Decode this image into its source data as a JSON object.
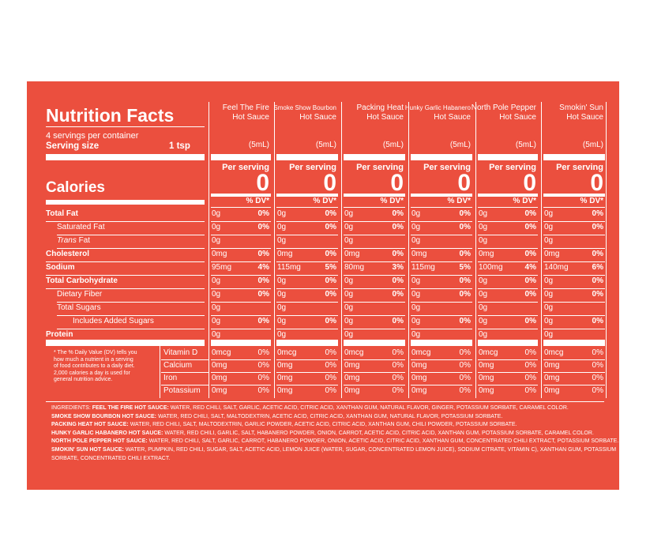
{
  "label": {
    "title": "Nutrition Facts",
    "servings": "4 servings per container",
    "serving_size_label": "Serving size",
    "serving_size_value": "1 tsp",
    "calories_label": "Calories",
    "footnote": [
      "* The % Daily Value (DV) tells you",
      "how much a nutrient in a serving",
      "of food contributes to a daily diet.",
      "2,000 calories a day is used for",
      "general nutrition advice."
    ]
  },
  "nutrients": [
    {
      "label": "Total Fat",
      "bold": true
    },
    {
      "label": "Saturated Fat",
      "indent": 1
    },
    {
      "label": "Trans Fat",
      "indent": 1,
      "italic_prefix": "Trans"
    },
    {
      "label": "Cholesterol",
      "bold": true
    },
    {
      "label": "Sodium",
      "bold": true
    },
    {
      "label": "Total Carbohydrate",
      "bold": true
    },
    {
      "label": "Dietary Fiber",
      "indent": 1
    },
    {
      "label": "Total Sugars",
      "indent": 1
    },
    {
      "label": "Includes Added Sugars",
      "indent": 2
    },
    {
      "label": "Protein",
      "bold": true
    }
  ],
  "minerals": [
    "Vitamin D",
    "Calcium",
    "Iron",
    "Potassium"
  ],
  "common": {
    "serving_ml": "(5mL)",
    "per_serving": "Per serving",
    "calories": "0",
    "dv_header": "% DV*"
  },
  "products": [
    {
      "name1": "Feel The Fire",
      "name2": "Hot Sauce",
      "small": false,
      "amounts": [
        "0g",
        "0g",
        "0g",
        "0mg",
        "95mg",
        "0g",
        "0g",
        "0g",
        "0g",
        "0g"
      ],
      "dv": [
        "0%",
        "0%",
        "",
        "0%",
        "4%",
        "0%",
        "0%",
        "",
        "0%",
        ""
      ],
      "minerals": [
        [
          "0mcg",
          "0%"
        ],
        [
          "0mg",
          "0%"
        ],
        [
          "0mg",
          "0%"
        ],
        [
          "0mg",
          "0%"
        ]
      ]
    },
    {
      "name1": "Smoke Show Bourbon",
      "name2": "Hot Sauce",
      "small": true,
      "amounts": [
        "0g",
        "0g",
        "0g",
        "0mg",
        "115mg",
        "0g",
        "0g",
        "0g",
        "0g",
        "0g"
      ],
      "dv": [
        "0%",
        "0%",
        "",
        "0%",
        "5%",
        "0%",
        "0%",
        "",
        "0%",
        ""
      ],
      "minerals": [
        [
          "0mcg",
          "0%"
        ],
        [
          "0mg",
          "0%"
        ],
        [
          "0mg",
          "0%"
        ],
        [
          "0mg",
          "0%"
        ]
      ]
    },
    {
      "name1": "Packing Heat",
      "name2": "Hot Sauce",
      "small": false,
      "amounts": [
        "0g",
        "0g",
        "0g",
        "0mg",
        "80mg",
        "0g",
        "0g",
        "0g",
        "0g",
        "0g"
      ],
      "dv": [
        "0%",
        "0%",
        "",
        "0%",
        "3%",
        "0%",
        "0%",
        "",
        "0%",
        ""
      ],
      "minerals": [
        [
          "0mcg",
          "0%"
        ],
        [
          "0mg",
          "0%"
        ],
        [
          "0mg",
          "0%"
        ],
        [
          "0mg",
          "0%"
        ]
      ]
    },
    {
      "name1": "Hunky Garlic Habanero",
      "name2": "Hot Sauce",
      "small": true,
      "amounts": [
        "0g",
        "0g",
        "0g",
        "0mg",
        "115mg",
        "0g",
        "0g",
        "0g",
        "0g",
        "0g"
      ],
      "dv": [
        "0%",
        "0%",
        "",
        "0%",
        "5%",
        "0%",
        "0%",
        "",
        "0%",
        ""
      ],
      "minerals": [
        [
          "0mcg",
          "0%"
        ],
        [
          "0mg",
          "0%"
        ],
        [
          "0mg",
          "0%"
        ],
        [
          "0mg",
          "0%"
        ]
      ]
    },
    {
      "name1": "North Pole Pepper",
      "name2": "Hot Sauce",
      "small": false,
      "amounts": [
        "0g",
        "0g",
        "0g",
        "0mg",
        "100mg",
        "0g",
        "0g",
        "0g",
        "0g",
        "0g"
      ],
      "dv": [
        "0%",
        "0%",
        "",
        "0%",
        "4%",
        "0%",
        "0%",
        "",
        "0%",
        ""
      ],
      "minerals": [
        [
          "0mcg",
          "0%"
        ],
        [
          "0mg",
          "0%"
        ],
        [
          "0mg",
          "0%"
        ],
        [
          "0mg",
          "0%"
        ]
      ]
    },
    {
      "name1": "Smokin' Sun",
      "name2": "Hot Sauce",
      "small": false,
      "amounts": [
        "0g",
        "0g",
        "0g",
        "0mg",
        "140mg",
        "0g",
        "0g",
        "0g",
        "0g",
        "0g"
      ],
      "dv": [
        "0%",
        "0%",
        "",
        "0%",
        "6%",
        "0%",
        "0%",
        "",
        "0%",
        ""
      ],
      "minerals": [
        [
          "0mcg",
          "0%"
        ],
        [
          "0mg",
          "0%"
        ],
        [
          "0mg",
          "0%"
        ],
        [
          "0mg",
          "0%"
        ]
      ]
    }
  ],
  "ingredients": [
    {
      "lead": "INGREDIENTS: ",
      "name": "FEEL THE FIRE HOT SAUCE:",
      "text": " WATER, RED CHILI, SALT, GARLIC, ACETIC ACID, CITRIC ACID, XANTHAN GUM, NATURAL FLAVOR, GINGER, POTASSIUM SORBATE, CARAMEL COLOR."
    },
    {
      "lead": "",
      "name": "SMOKE SHOW BOURBON HOT SAUCE:",
      "text": " WATER, RED CHILI, SALT, MALTODEXTRIN, ACETIC ACID, CITRIC ACID, XANTHAN GUM, NATURAL FLAVOR, POTASSIUM SORBATE."
    },
    {
      "lead": "",
      "name": "PACKING HEAT HOT SAUCE:",
      "text": " WATER, RED CHILI, SALT, MALTODEXTRIN, GARLIC POWDER, ACETIC ACID, CITRIC ACID, XANTHAN GUM, CHILI POWDER, POTASSIUM SORBATE."
    },
    {
      "lead": "",
      "name": "HUNKY GARLIC HABANERO HOT SAUCE:",
      "text": " WATER, RED CHILI, GARLIC, SALT, HABANERO POWDER, ONION, CARROT, ACETIC ACID, CITRIC ACID, XANTHAN GUM, POTASSIUM SORBATE, CARAMEL COLOR."
    },
    {
      "lead": "",
      "name": "NORTH POLE PEPPER HOT SAUCE:",
      "text": " WATER, RED CHILI, SALT, GARLIC, CARROT, HABANERO POWDER, ONION, ACETIC ACID, CITRIC ACID, XANTHAN GUM, CONCENTRATED CHILI EXTRACT, POTASSIUM SORBATE."
    },
    {
      "lead": "",
      "name": "SMOKIN' SUN HOT SAUCE:",
      "text": " WATER, PUMPKIN, RED CHILI, SUGAR, SALT, ACETIC ACID, LEMON JUICE (WATER, SUGAR, CONCENTRATED LEMON JUICE), SODIUM CITRATE, VITAMIN C), XANTHAN GUM, POTASSIUM"
    },
    {
      "lead": "",
      "name": "",
      "text": "SORBATE, CONCENTRATED CHILI EXTRACT."
    }
  ]
}
